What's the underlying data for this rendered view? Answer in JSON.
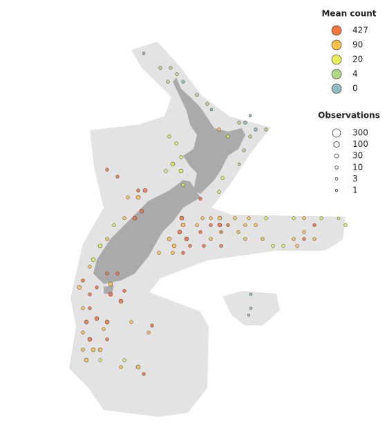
{
  "legend": {
    "color": {
      "title": "Mean count",
      "items": [
        {
          "value": 427,
          "color": "#f4733f"
        },
        {
          "value": 90,
          "color": "#fdc04a"
        },
        {
          "value": 20,
          "color": "#e7ec5a"
        },
        {
          "value": 4,
          "color": "#b3d686"
        },
        {
          "value": 0,
          "color": "#8fbcbb"
        }
      ]
    },
    "size": {
      "title": "Observations",
      "items": [
        300,
        100,
        30,
        10,
        3,
        1
      ]
    }
  },
  "points": [
    {
      "lon": 170.4,
      "lat": -32.88,
      "mean": 0,
      "obs": 3
    },
    {
      "lon": 171.6,
      "lat": -33.72,
      "mean": 4,
      "obs": 10
    },
    {
      "lon": 172.35,
      "lat": -33.72,
      "mean": 4,
      "obs": 10
    },
    {
      "lon": 172.8,
      "lat": -34.08,
      "mean": 4,
      "obs": 10
    },
    {
      "lon": 172.15,
      "lat": -34.52,
      "mean": 4,
      "obs": 10
    },
    {
      "lon": 173.25,
      "lat": -34.52,
      "mean": 0,
      "obs": 10
    },
    {
      "lon": 174.25,
      "lat": -35.28,
      "mean": 4,
      "obs": 10
    },
    {
      "lon": 175,
      "lat": -35.8,
      "mean": 4,
      "obs": 10
    },
    {
      "lon": 175.3,
      "lat": -36.12,
      "mean": 0,
      "obs": 3
    },
    {
      "lon": 178.1,
      "lat": -36.48,
      "mean": 0,
      "obs": 3
    },
    {
      "lon": 177.3,
      "lat": -36.88,
      "mean": 4,
      "obs": 10
    },
    {
      "lon": 177.75,
      "lat": -36.88,
      "mean": 0,
      "obs": 10
    },
    {
      "lon": 178.5,
      "lat": -37.28,
      "mean": 0,
      "obs": 10
    },
    {
      "lon": 179.25,
      "lat": -37.28,
      "mean": 4,
      "obs": 10
    },
    {
      "lon": 178.1,
      "lat": -37.68,
      "mean": 4,
      "obs": 10
    },
    {
      "lon": 175.85,
      "lat": -37.28,
      "mean": 90,
      "obs": 10
    },
    {
      "lon": 176.5,
      "lat": -37.68,
      "mean": 20,
      "obs": 10
    },
    {
      "lon": 177.65,
      "lat": -38.48,
      "mean": 4,
      "obs": 10
    },
    {
      "lon": 177.3,
      "lat": -39.28,
      "mean": 4,
      "obs": 3
    },
    {
      "lon": 176.1,
      "lat": -40.08,
      "mean": 20,
      "obs": 10
    },
    {
      "lon": 175.85,
      "lat": -40.88,
      "mean": 20,
      "obs": 10
    },
    {
      "lon": 174.5,
      "lat": -41.28,
      "mean": 427,
      "obs": 10
    },
    {
      "lon": 172.25,
      "lat": -37.68,
      "mean": 20,
      "obs": 10
    },
    {
      "lon": 172.75,
      "lat": -38.08,
      "mean": 20,
      "obs": 10
    },
    {
      "lon": 173.1,
      "lat": -38.88,
      "mean": 20,
      "obs": 10
    },
    {
      "lon": 172.5,
      "lat": -39.28,
      "mean": 20,
      "obs": 30
    },
    {
      "lon": 173.1,
      "lat": -39.68,
      "mean": 20,
      "obs": 30
    },
    {
      "lon": 172,
      "lat": -39.68,
      "mean": 20,
      "obs": 10
    },
    {
      "lon": 173.25,
      "lat": -40.48,
      "mean": 20,
      "obs": 10
    },
    {
      "lon": 173.15,
      "lat": -42.4,
      "mean": 427,
      "obs": 30
    },
    {
      "lon": 174.65,
      "lat": -42.4,
      "mean": 90,
      "obs": 10
    },
    {
      "lon": 175.25,
      "lat": -42.4,
      "mean": 90,
      "obs": 10
    },
    {
      "lon": 175.9,
      "lat": -42.4,
      "mean": 90,
      "obs": 30
    },
    {
      "lon": 177,
      "lat": -42.4,
      "mean": 90,
      "obs": 10
    },
    {
      "lon": 178,
      "lat": -42.4,
      "mean": 90,
      "obs": 10
    },
    {
      "lon": 179.25,
      "lat": -42.4,
      "mean": 20,
      "obs": 10
    },
    {
      "lon": 181.25,
      "lat": -42.4,
      "mean": 20,
      "obs": 10
    },
    {
      "lon": 182,
      "lat": -42.4,
      "mean": 90,
      "obs": 10
    },
    {
      "lon": 183.25,
      "lat": -42.4,
      "mean": 20,
      "obs": 10
    },
    {
      "lon": 184.5,
      "lat": -42.4,
      "mean": 20,
      "obs": 3
    },
    {
      "lon": 173.25,
      "lat": -42.8,
      "mean": 90,
      "obs": 30
    },
    {
      "lon": 174.25,
      "lat": -42.8,
      "mean": 90,
      "obs": 10
    },
    {
      "lon": 175.25,
      "lat": -42.8,
      "mean": 427,
      "obs": 10
    },
    {
      "lon": 175.9,
      "lat": -42.8,
      "mean": 427,
      "obs": 30
    },
    {
      "lon": 176.5,
      "lat": -42.8,
      "mean": 427,
      "obs": 10
    },
    {
      "lon": 177.75,
      "lat": -42.8,
      "mean": 90,
      "obs": 10
    },
    {
      "lon": 178.5,
      "lat": -42.8,
      "mean": 90,
      "obs": 10
    },
    {
      "lon": 182.75,
      "lat": -42.8,
      "mean": 427,
      "obs": 10
    },
    {
      "lon": 185,
      "lat": -42.8,
      "mean": 20,
      "obs": 10
    },
    {
      "lon": 173,
      "lat": -43.2,
      "mean": 427,
      "obs": 30
    },
    {
      "lon": 174.5,
      "lat": -43.2,
      "mean": 427,
      "obs": 10
    },
    {
      "lon": 176,
      "lat": -43.2,
      "mean": 427,
      "obs": 10
    },
    {
      "lon": 177.25,
      "lat": -43.2,
      "mean": 90,
      "obs": 10
    },
    {
      "lon": 182,
      "lat": -43.2,
      "mean": 90,
      "obs": 10
    },
    {
      "lon": 172.25,
      "lat": -43.6,
      "mean": 90,
      "obs": 30
    },
    {
      "lon": 173.5,
      "lat": -43.6,
      "mean": 427,
      "obs": 30
    },
    {
      "lon": 175.25,
      "lat": -43.6,
      "mean": 90,
      "obs": 10
    },
    {
      "lon": 177.75,
      "lat": -43.6,
      "mean": 90,
      "obs": 10
    },
    {
      "lon": 179,
      "lat": -43.6,
      "mean": 90,
      "obs": 10
    },
    {
      "lon": 181.25,
      "lat": -43.6,
      "mean": 90,
      "obs": 10
    },
    {
      "lon": 182,
      "lat": -43.6,
      "mean": 427,
      "obs": 10
    },
    {
      "lon": 182.75,
      "lat": -43.6,
      "mean": 90,
      "obs": 10
    },
    {
      "lon": 172.6,
      "lat": -44,
      "mean": 90,
      "obs": 30
    },
    {
      "lon": 173.75,
      "lat": -44,
      "mean": 427,
      "obs": 10
    },
    {
      "lon": 174.75,
      "lat": -44,
      "mean": 427,
      "obs": 10
    },
    {
      "lon": 176,
      "lat": -44,
      "mean": 427,
      "obs": 10
    },
    {
      "lon": 179.75,
      "lat": -44,
      "mean": 20,
      "obs": 10
    },
    {
      "lon": 180.5,
      "lat": -44,
      "mean": 20,
      "obs": 10
    },
    {
      "lon": 181.5,
      "lat": -44,
      "mean": 90,
      "obs": 10
    },
    {
      "lon": 171.5,
      "lat": -44.4,
      "mean": 90,
      "obs": 10
    },
    {
      "lon": 172.5,
      "lat": -44.4,
      "mean": 90,
      "obs": 10
    },
    {
      "lon": 173.25,
      "lat": -44.4,
      "mean": 427,
      "obs": 10
    },
    {
      "lon": 167.75,
      "lat": -39.6,
      "mean": 427,
      "obs": 10
    },
    {
      "lon": 168.5,
      "lat": -40,
      "mean": 427,
      "obs": 10
    },
    {
      "lon": 170,
      "lat": -40.8,
      "mean": 427,
      "obs": 10
    },
    {
      "lon": 170.5,
      "lat": -40.8,
      "mean": 427,
      "obs": 30
    },
    {
      "lon": 169.25,
      "lat": -41.2,
      "mean": 90,
      "obs": 10
    },
    {
      "lon": 170,
      "lat": -41.2,
      "mean": 90,
      "obs": 30
    },
    {
      "lon": 170.25,
      "lat": -42,
      "mean": 427,
      "obs": 30
    },
    {
      "lon": 169,
      "lat": -42.4,
      "mean": 90,
      "obs": 10
    },
    {
      "lon": 169.75,
      "lat": -42.4,
      "mean": 427,
      "obs": 30
    },
    {
      "lon": 168.25,
      "lat": -42.8,
      "mean": 20,
      "obs": 10
    },
    {
      "lon": 167.75,
      "lat": -43.6,
      "mean": 90,
      "obs": 10
    },
    {
      "lon": 167.25,
      "lat": -44,
      "mean": 20,
      "obs": 30
    },
    {
      "lon": 166.75,
      "lat": -44.8,
      "mean": 20,
      "obs": 30
    },
    {
      "lon": 166.5,
      "lat": -45.2,
      "mean": 90,
      "obs": 10
    },
    {
      "lon": 167.75,
      "lat": -45.6,
      "mean": 427,
      "obs": 10
    },
    {
      "lon": 168.5,
      "lat": -45.6,
      "mean": 427,
      "obs": 10
    },
    {
      "lon": 166,
      "lat": -46,
      "mean": 427,
      "obs": 10
    },
    {
      "lon": 165.75,
      "lat": -46.4,
      "mean": 90,
      "obs": 30
    },
    {
      "lon": 167,
      "lat": -46.4,
      "mean": 427,
      "obs": 10
    },
    {
      "lon": 168,
      "lat": -46.2,
      "mean": 90,
      "obs": 30
    },
    {
      "lon": 169,
      "lat": -46.6,
      "mean": 427,
      "obs": 10
    },
    {
      "lon": 166.5,
      "lat": -46.8,
      "mean": 427,
      "obs": 10
    },
    {
      "lon": 168,
      "lat": -46.8,
      "mean": 427,
      "obs": 30
    },
    {
      "lon": 168.75,
      "lat": -47.2,
      "mean": 427,
      "obs": 30
    },
    {
      "lon": 166,
      "lat": -47.6,
      "mean": 90,
      "obs": 10
    },
    {
      "lon": 166.5,
      "lat": -47.6,
      "mean": 427,
      "obs": 10
    },
    {
      "lon": 167,
      "lat": -48.2,
      "mean": 427,
      "obs": 30
    },
    {
      "lon": 166.25,
      "lat": -48.4,
      "mean": 427,
      "obs": 30
    },
    {
      "lon": 167.75,
      "lat": -48.4,
      "mean": 427,
      "obs": 30
    },
    {
      "lon": 169.5,
      "lat": -48.4,
      "mean": 90,
      "obs": 10
    },
    {
      "lon": 167.5,
      "lat": -48.8,
      "mean": 90,
      "obs": 10
    },
    {
      "lon": 166,
      "lat": -49,
      "mean": 90,
      "obs": 10
    },
    {
      "lon": 166.5,
      "lat": -49.4,
      "mean": 427,
      "obs": 30
    },
    {
      "lon": 167.75,
      "lat": -49.4,
      "mean": 427,
      "obs": 10
    },
    {
      "lon": 166,
      "lat": -50,
      "mean": 90,
      "obs": 10
    },
    {
      "lon": 166.75,
      "lat": -50,
      "mean": 90,
      "obs": 30
    },
    {
      "lon": 167.25,
      "lat": -50,
      "mean": 90,
      "obs": 30
    },
    {
      "lon": 166.25,
      "lat": -50.6,
      "mean": 90,
      "obs": 30
    },
    {
      "lon": 167.25,
      "lat": -50.6,
      "mean": 20,
      "obs": 10
    },
    {
      "lon": 169,
      "lat": -50.6,
      "mean": 20,
      "obs": 10
    },
    {
      "lon": 168.75,
      "lat": -51,
      "mean": 90,
      "obs": 10
    },
    {
      "lon": 170,
      "lat": -51,
      "mean": 90,
      "obs": 30
    },
    {
      "lon": 170.4,
      "lat": -51.4,
      "mean": 427,
      "obs": 10
    },
    {
      "lon": 170.75,
      "lat": -49,
      "mean": 90,
      "obs": 10
    },
    {
      "lon": 171,
      "lat": -48.6,
      "mean": 427,
      "obs": 10
    },
    {
      "lon": 178.15,
      "lat": -46.8,
      "mean": 0,
      "obs": 3
    },
    {
      "lon": 178.15,
      "lat": -47.6,
      "mean": 0,
      "obs": 3
    },
    {
      "lon": 178,
      "lat": -48,
      "mean": 0,
      "obs": 1
    }
  ]
}
